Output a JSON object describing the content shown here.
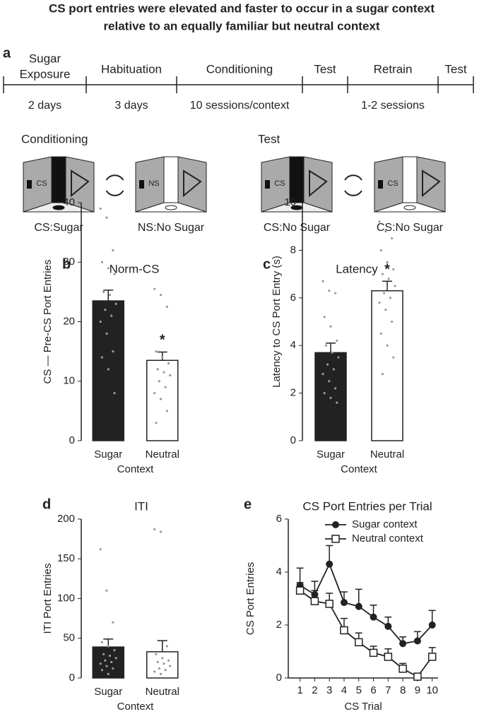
{
  "figure_title": [
    "CS port entries were elevated and faster to occur in a sugar context",
    "relative to an equally familiar but neutral context"
  ],
  "panel_labels": [
    "a",
    "b",
    "c",
    "d",
    "e"
  ],
  "timeline": {
    "phases": [
      {
        "name": [
          "Sugar",
          "Exposure"
        ],
        "duration": "2 days"
      },
      {
        "name": [
          "Habituation"
        ],
        "duration": "3 days"
      },
      {
        "name": [
          "Conditioning"
        ],
        "duration": "10 sessions/context"
      },
      {
        "name": [
          "Test"
        ],
        "duration": null
      },
      {
        "name": [
          "Retrain"
        ],
        "duration": "1-2 sessions"
      },
      {
        "name": [
          "Test"
        ],
        "duration": null
      }
    ]
  },
  "scenes": [
    {
      "title": "Conditioning",
      "chambers": [
        {
          "cue": "CS",
          "caption": "CS:Sugar"
        },
        {
          "cue": "NS",
          "caption": "NS:No Sugar"
        }
      ]
    },
    {
      "title": "Test",
      "chambers": [
        {
          "cue": "CS",
          "caption": "CS:No Sugar"
        },
        {
          "cue": "CS",
          "caption": "CS:No Sugar"
        }
      ]
    }
  ],
  "chart_data": [
    {
      "type": "bar",
      "title": "Norm-CS",
      "ylabel": "CS — Pre-CS Port Entries",
      "xlabel": "Context",
      "categories": [
        "Sugar",
        "Neutral"
      ],
      "values": [
        23.5,
        13.5
      ],
      "errors": [
        1.8,
        1.4
      ],
      "colors": [
        "#222222",
        "#ffffff"
      ],
      "points": [
        [
          39,
          37.5,
          32,
          30,
          29,
          28,
          25,
          24.5,
          23,
          22,
          21,
          20,
          18,
          15,
          14,
          12,
          8
        ],
        [
          25.5,
          24.5,
          22.5,
          15,
          14,
          13,
          12,
          11.5,
          11,
          10,
          9,
          8,
          7,
          5,
          3
        ]
      ],
      "annotations": [
        null,
        "*"
      ],
      "ylim": [
        0,
        40
      ],
      "yticks": [
        0,
        10,
        20,
        30,
        40
      ]
    },
    {
      "type": "bar",
      "title": "Latency",
      "ylabel": "Latency to CS Port Entry (s)",
      "xlabel": "Context",
      "categories": [
        "Sugar",
        "Neutral"
      ],
      "values": [
        3.7,
        6.3
      ],
      "errors": [
        0.4,
        0.4
      ],
      "colors": [
        "#222222",
        "#ffffff"
      ],
      "points": [
        [
          6.7,
          6.3,
          6.2,
          5.2,
          4.8,
          4.2,
          4,
          3.7,
          3.5,
          3.2,
          3,
          2.8,
          2.5,
          2.2,
          2,
          1.8,
          1.6
        ],
        [
          9.2,
          8.8,
          8.5,
          8,
          7.5,
          7.2,
          7,
          6.8,
          6.5,
          6.2,
          6,
          5.8,
          5.5,
          5,
          4.5,
          4,
          3.5,
          2.8
        ]
      ],
      "annotations": [
        null,
        "*"
      ],
      "ylim": [
        0,
        10
      ],
      "yticks": [
        0,
        2,
        4,
        6,
        8,
        10
      ]
    },
    {
      "type": "bar",
      "title": "ITI",
      "ylabel": "ITI Port Entries",
      "xlabel": "Context",
      "categories": [
        "Sugar",
        "Neutral"
      ],
      "values": [
        39,
        33
      ],
      "errors": [
        10,
        14
      ],
      "colors": [
        "#222222",
        "#ffffff"
      ],
      "points": [
        [
          162,
          110,
          70,
          45,
          40,
          35,
          30,
          28,
          25,
          22,
          20,
          18,
          15,
          12,
          10,
          5
        ],
        [
          187,
          184,
          40,
          30,
          25,
          22,
          20,
          18,
          15,
          12,
          10,
          8,
          5
        ]
      ],
      "annotations": [
        null,
        null
      ],
      "ylim": [
        0,
        200
      ],
      "yticks": [
        0,
        50,
        100,
        150,
        200
      ]
    },
    {
      "type": "line",
      "title": "CS Port Entries per Trial",
      "ylabel": "CS Port Entries",
      "xlabel": "CS Trial",
      "x": [
        1,
        2,
        3,
        4,
        5,
        6,
        7,
        8,
        9,
        10
      ],
      "xlim": [
        0.2,
        10.4
      ],
      "xticks": [
        1,
        2,
        3,
        4,
        5,
        6,
        7,
        8,
        9,
        10
      ],
      "ylim": [
        0,
        6
      ],
      "yticks": [
        0,
        2,
        4,
        6
      ],
      "legend": "top-right",
      "series": [
        {
          "name": "Sugar context",
          "color": "#222222",
          "marker": "circle",
          "values": [
            3.5,
            3.15,
            4.3,
            2.85,
            2.7,
            2.3,
            1.95,
            1.3,
            1.4,
            2.0
          ],
          "errors": [
            0.65,
            0.5,
            0.7,
            0.4,
            0.65,
            0.45,
            0.35,
            0.25,
            0.35,
            0.55
          ]
        },
        {
          "name": "Neutral context",
          "color": "#222222",
          "marker": "square",
          "values": [
            3.3,
            2.9,
            2.8,
            1.8,
            1.35,
            0.95,
            0.8,
            0.35,
            0.05,
            0.8
          ],
          "errors": [
            0.3,
            0.4,
            0.4,
            0.45,
            0.35,
            0.25,
            0.3,
            0.2,
            0.1,
            0.35
          ]
        }
      ]
    }
  ]
}
